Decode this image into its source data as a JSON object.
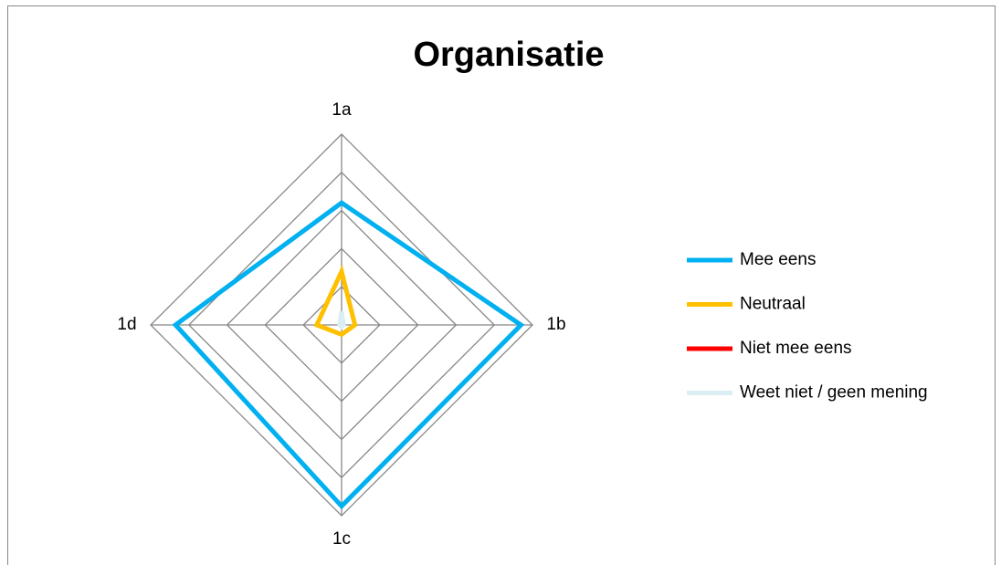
{
  "chart_data": {
    "type": "radar",
    "title": "Organisatie",
    "categories": [
      "1a",
      "1b",
      "1c",
      "1d"
    ],
    "rlim": [
      0,
      100
    ],
    "rticks": [
      20,
      40,
      60,
      80,
      100
    ],
    "grid": true,
    "legend": "right",
    "series": [
      {
        "name": "Mee eens",
        "color": "#00b0f0",
        "values": [
          64,
          94,
          95,
          87
        ]
      },
      {
        "name": "Neutraal",
        "color": "#ffc000",
        "values": [
          28,
          7,
          5,
          13
        ]
      },
      {
        "name": "Niet mee eens",
        "color": "#ff0000",
        "values": [
          0,
          0,
          0,
          0
        ]
      },
      {
        "name": "Weet niet / geen mening",
        "color": "#dbeef4",
        "values": [
          7,
          1,
          1,
          1
        ]
      }
    ]
  }
}
